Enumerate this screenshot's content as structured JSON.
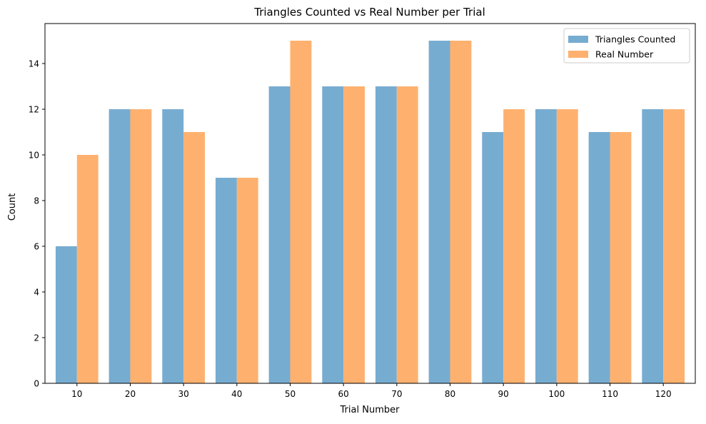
{
  "chart_data": {
    "type": "bar",
    "title": "Triangles Counted vs Real Number per Trial",
    "xlabel": "Trial Number",
    "ylabel": "Count",
    "categories": [
      "10",
      "20",
      "30",
      "40",
      "50",
      "60",
      "70",
      "80",
      "90",
      "100",
      "110",
      "120"
    ],
    "series": [
      {
        "name": "Triangles Counted",
        "color": "#77acd1",
        "values": [
          6,
          12,
          12,
          9,
          13,
          13,
          13,
          15,
          11,
          12,
          11,
          12
        ]
      },
      {
        "name": "Real Number",
        "color": "#feb16f",
        "values": [
          10,
          12,
          11,
          9,
          15,
          13,
          13,
          15,
          12,
          12,
          11,
          12
        ]
      }
    ],
    "ylim": [
      0,
      15.75
    ],
    "yticks": [
      0,
      2,
      4,
      6,
      8,
      10,
      12,
      14
    ],
    "grid": false,
    "legend_position": "top-right"
  }
}
